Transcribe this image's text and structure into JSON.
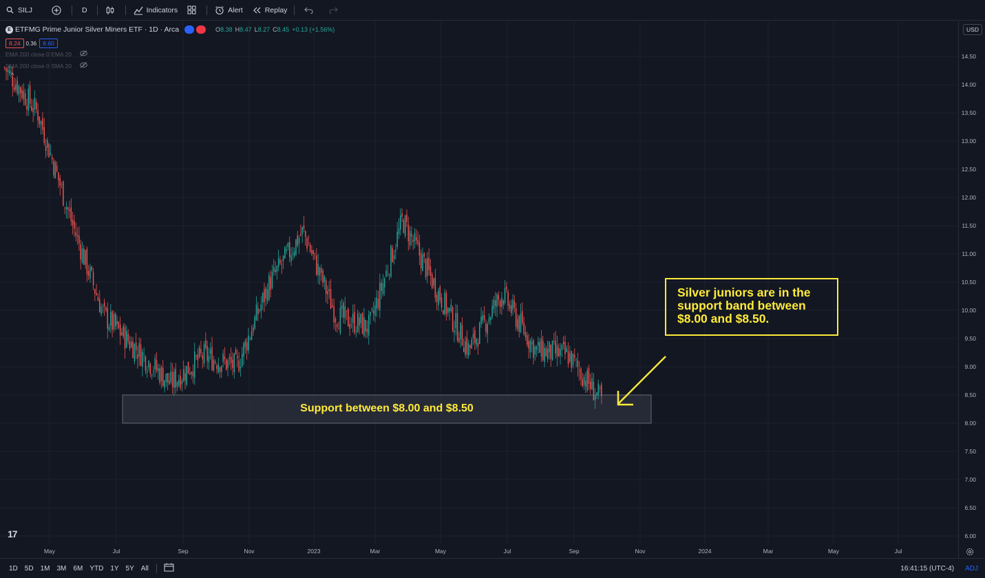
{
  "toolbar": {
    "symbol": "SILJ",
    "interval": "D",
    "indicators_label": "Indicators",
    "alert_label": "Alert",
    "replay_label": "Replay"
  },
  "legend": {
    "title": "ETFMG Prime Junior Silver Miners ETF · 1D · Arca",
    "logo_letter": "E",
    "ohlc": [
      {
        "key": "O",
        "value": "8.38"
      },
      {
        "key": "H",
        "value": "8.47"
      },
      {
        "key": "L",
        "value": "8.27"
      },
      {
        "key": "C",
        "value": "8.45"
      },
      {
        "key": "",
        "value": "+0.13 (+1.56%)"
      }
    ],
    "bid": "8.24",
    "spread": "0.36",
    "ask": "8.60",
    "indicators": [
      {
        "label": "EMA 200 close 0 EMA 20"
      },
      {
        "label": "SMA 200 close 0 SMA 20"
      }
    ]
  },
  "price_axis": {
    "currency": "USD",
    "ticks": [
      "14.50",
      "14.00",
      "13.50",
      "13.00",
      "12.50",
      "12.00",
      "11.50",
      "11.00",
      "10.50",
      "10.00",
      "9.50",
      "9.00",
      "8.50",
      "8.00",
      "7.50",
      "7.00",
      "6.50",
      "6.00"
    ]
  },
  "time_axis": {
    "ticks": [
      "May",
      "Jul",
      "Sep",
      "Nov",
      "2023",
      "Mar",
      "May",
      "Jul",
      "Sep",
      "Nov",
      "2024",
      "Mar",
      "May",
      "Jul"
    ]
  },
  "annotations": {
    "support_label": "Support between $8.00 and $8.50",
    "callout_line1": "Silver juniors are in the",
    "callout_line2": "support band between",
    "callout_line3": "$8.00 and $8.50."
  },
  "bottom_bar": {
    "ranges": [
      "1D",
      "5D",
      "1M",
      "3M",
      "6M",
      "YTD",
      "1Y",
      "5Y",
      "All"
    ],
    "time": "16:41:15 (UTC-4)",
    "adj": "ADJ"
  },
  "colors": {
    "background": "#131722",
    "up": "#26a69a",
    "down": "#ef5350",
    "annotation": "#ffeb3b",
    "support_band": "#2a2e39"
  },
  "chart_data": {
    "type": "candlestick",
    "ylim": [
      6.0,
      14.75
    ],
    "support_band": [
      8.0,
      8.5
    ],
    "x": [
      "2022-04",
      "2022-05",
      "2022-06",
      "2022-07",
      "2022-08",
      "2022-09",
      "2022-10",
      "2022-11",
      "2022-12",
      "2023-01",
      "2023-02",
      "2023-03",
      "2023-04",
      "2023-05",
      "2023-06",
      "2023-07",
      "2023-08",
      "2023-09",
      "2023-10"
    ],
    "series": [
      {
        "values": [
          14.3,
          13.5,
          11.6,
          9.9,
          9.3,
          8.7,
          9.2,
          9.0,
          10.5,
          11.4,
          9.9,
          9.7,
          11.6,
          10.4,
          9.3,
          10.3,
          9.3,
          9.2,
          8.4
        ]
      }
    ]
  }
}
